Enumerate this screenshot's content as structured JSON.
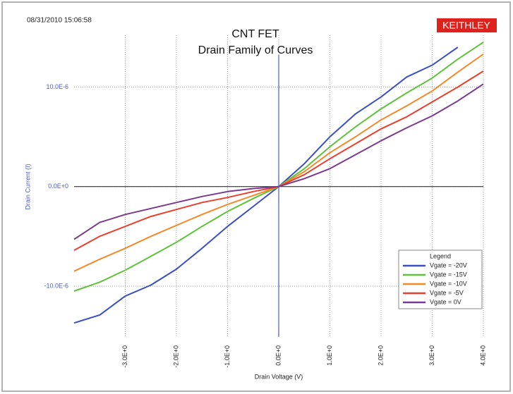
{
  "chart_data": {
    "type": "line",
    "timestamp": "08/31/2010 15:06:58",
    "brand": "KEITHLEY",
    "title": "CNT FET",
    "subtitle": "Drain Family of Curves",
    "x_label": "Drain Voltage (V)",
    "y_label": "Drain Current (I)",
    "x": [
      -4,
      -3.5,
      -3,
      -2.5,
      -2,
      -1.5,
      -1,
      -0.5,
      0,
      0.5,
      1,
      1.5,
      2,
      2.5,
      3,
      3.5,
      4
    ],
    "series": [
      {
        "name": "Vgate = -20V",
        "color": "#3a4fc2",
        "values": [
          -1.37e-05,
          -1.29e-05,
          -1.1e-05,
          -9.9e-06,
          -8.3e-06,
          -6.2e-06,
          -4e-06,
          -2e-06,
          0,
          2.3e-06,
          5e-06,
          7.3e-06,
          9e-06,
          1.1e-05,
          1.22e-05,
          1.4e-05,
          null
        ]
      },
      {
        "name": "Vgate = -15V",
        "color": "#5fc23a",
        "values": [
          -1.05e-05,
          -9.6e-06,
          -8.4e-06,
          -7e-06,
          -5.6e-06,
          -4e-06,
          -2.5e-06,
          -1.2e-06,
          0,
          1.8e-06,
          4e-06,
          6e-06,
          7.8e-06,
          9.4e-06,
          1.09e-05,
          1.28e-05,
          1.45e-05
        ]
      },
      {
        "name": "Vgate = -10V",
        "color": "#f28a2a",
        "values": [
          -8.5e-06,
          -7.3e-06,
          -6.2e-06,
          -5e-06,
          -3.9e-06,
          -2.8e-06,
          -1.8e-06,
          -9e-07,
          0,
          1.5e-06,
          3.4e-06,
          5e-06,
          6.7e-06,
          8.1e-06,
          9.6e-06,
          1.15e-05,
          1.33e-05
        ]
      },
      {
        "name": "Vgate = -5V",
        "color": "#e8402e",
        "values": [
          -6.4e-06,
          -5e-06,
          -4e-06,
          -3e-06,
          -2.3e-06,
          -1.6e-06,
          -1.1e-06,
          -5e-07,
          0,
          1.2e-06,
          2.8e-06,
          4.3e-06,
          5.8e-06,
          7e-06,
          8.5e-06,
          1e-05,
          1.16e-05
        ]
      },
      {
        "name": "Vgate = 0V",
        "color": "#7a3a8e",
        "values": [
          -5.3e-06,
          -3.6e-06,
          -2.8e-06,
          -2.2e-06,
          -1.6e-06,
          -1e-06,
          -5e-07,
          -2e-07,
          0,
          8e-07,
          1.8e-06,
          3.2e-06,
          4.6e-06,
          5.9e-06,
          7.1e-06,
          8.6e-06,
          1.03e-05
        ]
      }
    ],
    "xlim": [
      -4,
      4
    ],
    "ylim": [
      -1.51e-05,
      1.52e-05
    ],
    "xticks": [
      {
        "value": -3,
        "label": "-3.0E+0"
      },
      {
        "value": -2,
        "label": "-2.0E+0"
      },
      {
        "value": -1,
        "label": "-1.0E+0"
      },
      {
        "value": 0,
        "label": "0.0E+0"
      },
      {
        "value": 1,
        "label": "1.0E+0"
      },
      {
        "value": 2,
        "label": "2.0E+0"
      },
      {
        "value": 3,
        "label": "3.0E+0"
      },
      {
        "value": 4,
        "label": "4.0E+0"
      }
    ],
    "yticks": [
      {
        "value": 1e-05,
        "label": "10.0E-6"
      },
      {
        "value": 0,
        "label": "0.0E+0"
      },
      {
        "value": -1e-05,
        "label": "-10.0E-6"
      }
    ],
    "grid": true,
    "legend_title": "Legend",
    "legend": "lower right"
  }
}
